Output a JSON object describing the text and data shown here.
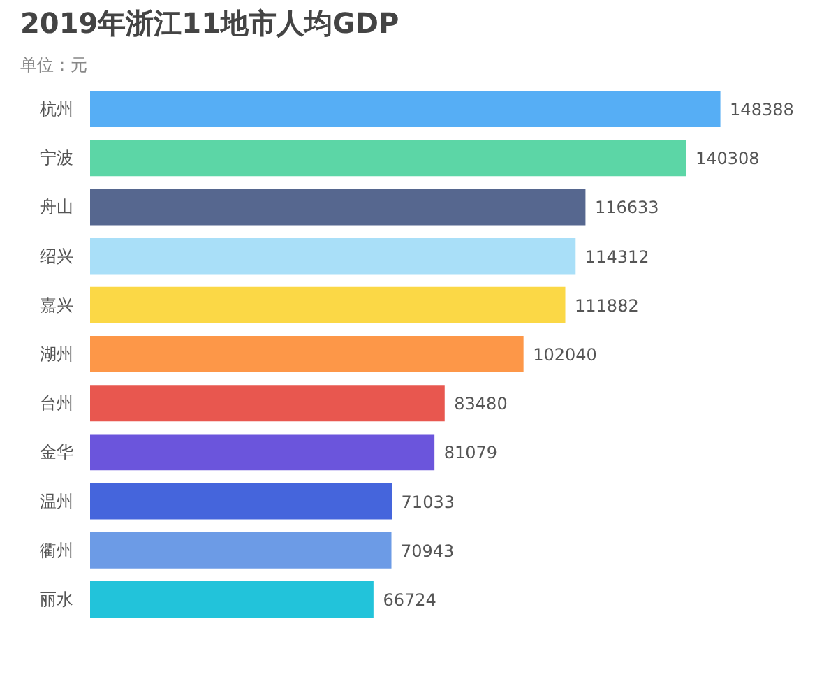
{
  "chart_data": {
    "type": "bar",
    "orientation": "horizontal",
    "title": "2019年浙江11地市人均GDP",
    "subtitle": "单位：元",
    "categories": [
      "杭州",
      "宁波",
      "舟山",
      "绍兴",
      "嘉兴",
      "湖州",
      "台州",
      "金华",
      "温州",
      "衢州",
      "丽水"
    ],
    "values": [
      148388,
      140308,
      116633,
      114312,
      111882,
      102040,
      83480,
      81079,
      71033,
      70943,
      66724
    ],
    "colors": [
      "#56aef5",
      "#5cd6a6",
      "#56678f",
      "#a9dff8",
      "#fbd846",
      "#fd9748",
      "#e8574f",
      "#6b55dc",
      "#4565dc",
      "#6c9be6",
      "#22c3da"
    ],
    "data_labels": true
  }
}
